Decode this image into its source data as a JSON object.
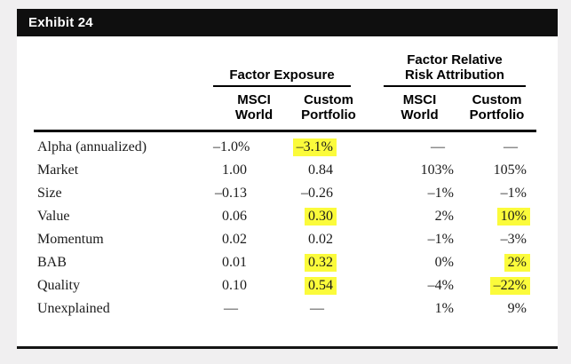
{
  "exhibit": {
    "title": "Exhibit 24"
  },
  "colors": {
    "canvas_bg": "#f0eff0",
    "page_bg": "#ffffff",
    "header_bar": "#0f0f0f",
    "highlight_yellow": "#fbfb3b",
    "rule_black": "#000000"
  },
  "table": {
    "groups": [
      {
        "line1": "Factor Exposure"
      },
      {
        "line1": "Factor Relative",
        "line2": "Risk Attribution"
      }
    ],
    "cols": [
      {
        "line1": "MSCI",
        "line2": "World"
      },
      {
        "line1": "Custom",
        "line2": "Portfolio"
      },
      {
        "line1": "MSCI",
        "line2": "World"
      },
      {
        "line1": "Custom",
        "line2": "Portfolio"
      }
    ],
    "rows": [
      {
        "factor": "Alpha (annualized)",
        "fe_msci": "–1.0%",
        "fe_custom": "–3.1%",
        "rra_msci": "—",
        "rra_custom": "—",
        "hl": [
          "fe_custom"
        ]
      },
      {
        "factor": "Market",
        "fe_msci": "1.00",
        "fe_custom": "0.84",
        "rra_msci": "103%",
        "rra_custom": "105%",
        "hl": []
      },
      {
        "factor": "Size",
        "fe_msci": "–0.13",
        "fe_custom": "–0.26",
        "rra_msci": "–1%",
        "rra_custom": "–1%",
        "hl": []
      },
      {
        "factor": "Value",
        "fe_msci": "0.06",
        "fe_custom": "0.30",
        "rra_msci": "2%",
        "rra_custom": "10%",
        "hl": [
          "fe_custom",
          "rra_custom"
        ]
      },
      {
        "factor": "Momentum",
        "fe_msci": "0.02",
        "fe_custom": "0.02",
        "rra_msci": "–1%",
        "rra_custom": "–3%",
        "hl": []
      },
      {
        "factor": "BAB",
        "fe_msci": "0.01",
        "fe_custom": "0.32",
        "rra_msci": "0%",
        "rra_custom": "2%",
        "hl": [
          "fe_custom",
          "rra_custom"
        ]
      },
      {
        "factor": "Quality",
        "fe_msci": "0.10",
        "fe_custom": "0.54",
        "rra_msci": "–4%",
        "rra_custom": "–22%",
        "hl": [
          "fe_custom",
          "rra_custom"
        ]
      },
      {
        "factor": "Unexplained",
        "fe_msci": "—",
        "fe_custom": "—",
        "rra_msci": "1%",
        "rra_custom": "9%",
        "hl": []
      }
    ]
  }
}
